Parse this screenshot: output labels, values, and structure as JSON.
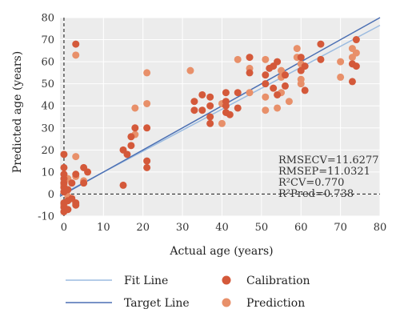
{
  "chart_data": {
    "type": "scatter",
    "xlabel": "Actual age (years)",
    "ylabel": "Predicted age (years)",
    "xlim": [
      -1,
      80
    ],
    "ylim": [
      -10,
      80
    ],
    "xticks": [
      "0",
      "10",
      "20",
      "30",
      "40",
      "50",
      "60",
      "70",
      "80"
    ],
    "yticks": [
      "-10",
      "0",
      "10",
      "20",
      "30",
      "40",
      "50",
      "60",
      "70",
      "80"
    ],
    "grid": true,
    "legend_position": "bottom",
    "colors": {
      "calibration": "#d4593a",
      "prediction": "#e8906a",
      "fit_line": "#9bbbe0",
      "target_line": "#4b6fb3",
      "plot_background": "#ececec",
      "grid": "#ffffff",
      "reference_line": "#333333"
    },
    "fit_line": {
      "x": [
        -1,
        80
      ],
      "y": [
        -0.5,
        76.5
      ]
    },
    "target_line": {
      "x": [
        -1,
        80
      ],
      "y": [
        -1,
        80
      ]
    },
    "reference_lines": {
      "vertical_x": 0,
      "horizontal_y": 0,
      "style": "dashed"
    },
    "series": [
      {
        "name": "Calibration",
        "x": [
          0,
          0,
          0,
          0,
          0,
          0,
          0,
          0,
          0,
          0,
          1,
          1,
          1,
          2,
          2,
          3,
          3,
          3,
          3,
          5,
          5,
          6,
          15,
          15,
          16,
          17,
          17,
          18,
          21,
          21,
          21,
          33,
          33,
          35,
          35,
          37,
          37,
          37,
          37,
          41,
          41,
          41,
          41,
          42,
          44,
          44,
          47,
          47,
          51,
          51,
          52,
          53,
          53,
          54,
          54,
          56,
          56,
          60,
          60,
          61,
          61,
          65,
          65,
          73,
          73,
          74,
          74
        ],
        "y": [
          -8,
          -6,
          -4,
          1,
          3,
          5,
          7,
          9,
          12,
          18,
          -7,
          -3,
          2,
          -2,
          5,
          -4,
          -5,
          9,
          68,
          5,
          12,
          10,
          20,
          4,
          18,
          26,
          22,
          30,
          30,
          15,
          12,
          42,
          38,
          45,
          38,
          44,
          40,
          35,
          32,
          46,
          42,
          40,
          37,
          36,
          46,
          39,
          55,
          62,
          50,
          54,
          57,
          58,
          48,
          60,
          45,
          54,
          49,
          62,
          56,
          47,
          58,
          61,
          68,
          51,
          59,
          58,
          70
        ]
      },
      {
        "name": "Prediction",
        "x": [
          0,
          0,
          0,
          1,
          1,
          3,
          3,
          3,
          5,
          18,
          18,
          21,
          21,
          32,
          40,
          40,
          44,
          47,
          47,
          51,
          51,
          51,
          54,
          55,
          55,
          55,
          57,
          59,
          59,
          60,
          60,
          60,
          70,
          70,
          73,
          73,
          74
        ],
        "y": [
          -5,
          4,
          5,
          -1,
          7,
          63,
          17,
          8,
          6,
          39,
          27,
          55,
          41,
          56,
          32,
          41,
          61,
          57,
          46,
          38,
          44,
          61,
          39,
          53,
          56,
          46,
          42,
          62,
          66,
          59,
          52,
          50,
          60,
          53,
          62,
          66,
          64
        ]
      }
    ],
    "annotations": [
      "RMSECV=11.6277",
      "RMSEP=11.0321",
      "R²CV=0.770",
      "R²Pred=0.738"
    ],
    "legend": {
      "fit_line": "Fit Line",
      "target_line": "Target Line",
      "calibration": "Calibration",
      "prediction": "Prediction"
    }
  }
}
